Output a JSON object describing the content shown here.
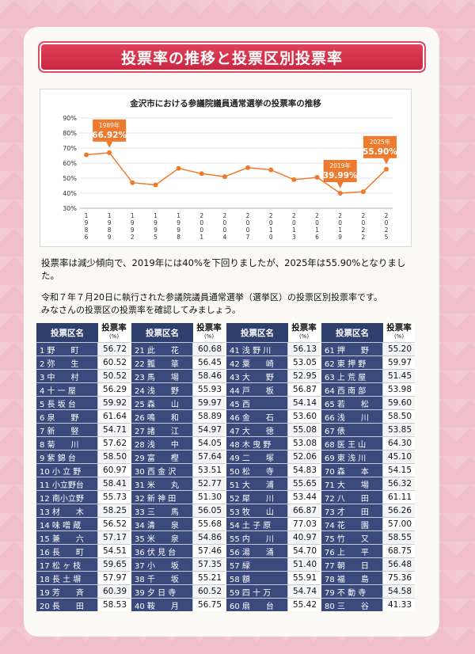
{
  "title": "投票率の推移と投票区別投票率",
  "chart_data": {
    "type": "line",
    "title": "金沢市における参議院議員通常選挙の投票率の推移",
    "x": [
      "1986",
      "1989",
      "1992",
      "1995",
      "1998",
      "2001",
      "2004",
      "2007",
      "2010",
      "2013",
      "2016",
      "2019",
      "2022",
      "2025"
    ],
    "values": [
      65.5,
      66.92,
      47,
      45.5,
      56.5,
      53,
      51,
      57,
      55.5,
      49,
      50.5,
      39.99,
      41,
      55.9
    ],
    "ylim": [
      30,
      90
    ],
    "yticks": [
      "30%",
      "40%",
      "50%",
      "60%",
      "70%",
      "80%",
      "90%"
    ],
    "line_color": "#ee7a2e",
    "annotations": [
      {
        "year": "1989年",
        "value": "66.92%",
        "index": 1
      },
      {
        "year": "2019年",
        "value": "39.99%",
        "index": 11
      },
      {
        "year": "2025年",
        "value": "55.90%",
        "index": 13
      }
    ]
  },
  "note": "投票率は減少傾向で、2019年には40%を下回りましたが、2025年は55.90%となりました。",
  "intro_line1": "令和７年７月20日に執行された参議院議員通常選挙（選挙区）の投票区別投票率です。",
  "intro_line2": "みなさんの投票区の投票率を確認してみましょう。",
  "table": {
    "header_name": "投票区名",
    "header_rate": "投票率",
    "header_unit": "(%)",
    "columns": [
      [
        [
          "1 野　　町",
          "56.72"
        ],
        [
          "2 弥　　生",
          "60.52"
        ],
        [
          "3 中　　村",
          "50.52"
        ],
        [
          "4 十 一 屋",
          "56.29"
        ],
        [
          "5 長 坂 台",
          "59.92"
        ],
        [
          "6 泉　　野",
          "61.64"
        ],
        [
          "7 新　　竪",
          "54.71"
        ],
        [
          "8 菊　　川",
          "57.62"
        ],
        [
          "9 紫 錦 台",
          "58.50"
        ],
        [
          "10 小 立 野",
          "60.97"
        ],
        [
          "11 小立野台",
          "58.41"
        ],
        [
          "12 南小立野",
          "55.73"
        ],
        [
          "13 材　　木",
          "58.25"
        ],
        [
          "14 味 噌 蔵",
          "56.52"
        ],
        [
          "15 兼　　六",
          "57.17"
        ],
        [
          "16 長　　町",
          "54.51"
        ],
        [
          "17 松 ヶ 枝",
          "59.65"
        ],
        [
          "18 長 土 塀",
          "57.97"
        ],
        [
          "19 芳　　斉",
          "60.39"
        ],
        [
          "20 長　　田",
          "58.53"
        ]
      ],
      [
        [
          "21 此　　花",
          "60.68"
        ],
        [
          "22 瓢　　箪",
          "56.45"
        ],
        [
          "23 馬　　場",
          "58.46"
        ],
        [
          "24 浅　　野",
          "55.93"
        ],
        [
          "25 森　　山",
          "59.97"
        ],
        [
          "26 鳴　　和",
          "58.89"
        ],
        [
          "27 諸　　江",
          "54.97"
        ],
        [
          "28 浅　　中",
          "54.05"
        ],
        [
          "29 富　　樫",
          "57.64"
        ],
        [
          "30 西 金 沢",
          "53.51"
        ],
        [
          "31 米　　丸",
          "52.77"
        ],
        [
          "32 新 神 田",
          "51.30"
        ],
        [
          "33 三　　馬",
          "56.05"
        ],
        [
          "34 清　　泉",
          "55.68"
        ],
        [
          "35 米　　泉",
          "54.86"
        ],
        [
          "36 伏 見 台",
          "57.46"
        ],
        [
          "37 小　　坂",
          "57.35"
        ],
        [
          "38 千　　坂",
          "55.21"
        ],
        [
          "39 夕 日 寺",
          "60.52"
        ],
        [
          "40 鞍　　月",
          "56.75"
        ]
      ],
      [
        [
          "41 浅 野 川",
          "56.13"
        ],
        [
          "42 粟　　崎",
          "53.05"
        ],
        [
          "43 大　　野",
          "52.95"
        ],
        [
          "44 戸　　板",
          "56.87"
        ],
        [
          "45 西",
          "54.14"
        ],
        [
          "46 金　　石",
          "53.60"
        ],
        [
          "47 大　　徳",
          "55.08"
        ],
        [
          "48 木 曳 野",
          "53.08"
        ],
        [
          "49 二　　塚",
          "52.06"
        ],
        [
          "50 松　　寺",
          "54.83"
        ],
        [
          "51 大　　浦",
          "55.65"
        ],
        [
          "52 犀　　川",
          "53.44"
        ],
        [
          "53 牧　　山",
          "66.87"
        ],
        [
          "54 土 子 原",
          "77.03"
        ],
        [
          "55 内　　川",
          "40.97"
        ],
        [
          "56 湯　　涌",
          "54.70"
        ],
        [
          "57 緑",
          "51.40"
        ],
        [
          "58 額",
          "55.91"
        ],
        [
          "59 四 十 万",
          "54.74"
        ],
        [
          "60 扇　　台",
          "55.42"
        ]
      ],
      [
        [
          "61 押　　野",
          "55.20"
        ],
        [
          "62 東 押 野",
          "59.97"
        ],
        [
          "63 上 荒 屋",
          "51.45"
        ],
        [
          "64 西 南 部",
          "53.98"
        ],
        [
          "65 若　　松",
          "59.60"
        ],
        [
          "66 浅　　川",
          "58.50"
        ],
        [
          "67 俵",
          "53.85"
        ],
        [
          "68 医 王 山",
          "64.30"
        ],
        [
          "69 東 浅 川",
          "45.10"
        ],
        [
          "70 森　　本",
          "54.15"
        ],
        [
          "71 大　　場",
          "56.32"
        ],
        [
          "72 八　　田",
          "61.11"
        ],
        [
          "73 才　　田",
          "56.26"
        ],
        [
          "74 花　　園",
          "57.00"
        ],
        [
          "75 竹　　又",
          "58.55"
        ],
        [
          "76 上　　平",
          "68.75"
        ],
        [
          "77 朝　　日",
          "56.48"
        ],
        [
          "78 福　　島",
          "75.36"
        ],
        [
          "79 不 動 寺",
          "54.58"
        ],
        [
          "80 三　　谷",
          "41.33"
        ]
      ]
    ]
  }
}
